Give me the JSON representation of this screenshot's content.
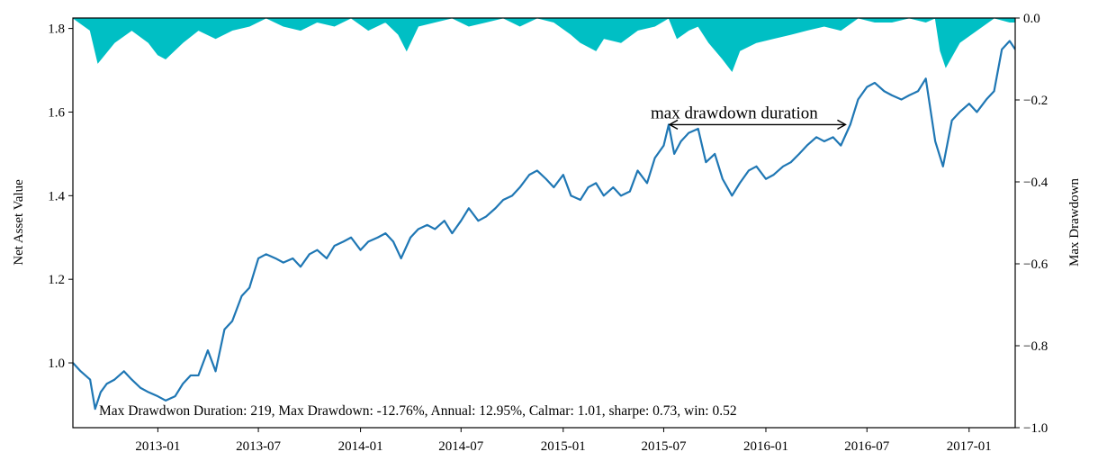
{
  "chart_data": {
    "type": "line",
    "title": "",
    "xlabel": "",
    "ylabel": "Net Asset Value",
    "y2label": "Max Drawdown",
    "xlim": [
      "2012-08-01",
      "2017-03-25"
    ],
    "ylim": [
      0.845,
      1.825
    ],
    "y2lim": [
      -1.0,
      0.0
    ],
    "x_ticks": [
      "2013-01",
      "2013-07",
      "2014-01",
      "2014-07",
      "2015-01",
      "2015-07",
      "2016-01",
      "2016-07",
      "2017-01"
    ],
    "y_ticks": [
      "1.0",
      "1.2",
      "1.4",
      "1.6",
      "1.8"
    ],
    "y2_ticks": [
      "0.0",
      "−0.2",
      "−0.4",
      "−0.6",
      "−0.8",
      "−1.0"
    ],
    "legend": "none",
    "grid": false,
    "colors": {
      "nav": "#1f77b4",
      "drawdown": "#00bfc4"
    },
    "series": [
      {
        "axis": "left",
        "type": "line",
        "x": [
          "2012-08-01",
          "2012-08-15",
          "2012-09-01",
          "2012-09-10",
          "2012-09-20",
          "2012-10-01",
          "2012-10-15",
          "2012-11-01",
          "2012-11-15",
          "2012-12-01",
          "2012-12-15",
          "2013-01-01",
          "2013-01-15",
          "2013-02-01",
          "2013-02-15",
          "2013-03-01",
          "2013-03-15",
          "2013-04-01",
          "2013-04-15",
          "2013-05-01",
          "2013-05-15",
          "2013-06-01",
          "2013-06-15",
          "2013-07-01",
          "2013-07-15",
          "2013-08-01",
          "2013-08-15",
          "2013-09-01",
          "2013-09-15",
          "2013-10-01",
          "2013-10-15",
          "2013-11-01",
          "2013-11-15",
          "2013-12-01",
          "2013-12-15",
          "2014-01-01",
          "2014-01-15",
          "2014-02-01",
          "2014-02-15",
          "2014-03-01",
          "2014-03-15",
          "2014-04-01",
          "2014-04-15",
          "2014-05-01",
          "2014-05-15",
          "2014-06-01",
          "2014-06-15",
          "2014-07-01",
          "2014-07-15",
          "2014-08-01",
          "2014-08-15",
          "2014-09-01",
          "2014-09-15",
          "2014-10-01",
          "2014-10-15",
          "2014-11-01",
          "2014-11-15",
          "2014-12-01",
          "2014-12-15",
          "2015-01-01",
          "2015-01-15",
          "2015-02-01",
          "2015-02-15",
          "2015-03-01",
          "2015-03-15",
          "2015-04-01",
          "2015-04-15",
          "2015-05-01",
          "2015-05-15",
          "2015-06-01",
          "2015-06-15",
          "2015-07-01",
          "2015-07-10",
          "2015-07-20",
          "2015-08-01",
          "2015-08-15",
          "2015-09-01",
          "2015-09-15",
          "2015-10-01",
          "2015-10-15",
          "2015-11-01",
          "2015-11-15",
          "2015-12-01",
          "2015-12-15",
          "2016-01-01",
          "2016-01-15",
          "2016-02-01",
          "2016-02-15",
          "2016-03-01",
          "2016-03-15",
          "2016-04-01",
          "2016-04-15",
          "2016-05-01",
          "2016-05-15",
          "2016-06-01",
          "2016-06-15",
          "2016-07-01",
          "2016-07-15",
          "2016-08-01",
          "2016-08-15",
          "2016-09-01",
          "2016-09-15",
          "2016-10-01",
          "2016-10-15",
          "2016-11-01",
          "2016-11-15",
          "2016-12-01",
          "2016-12-15",
          "2017-01-01",
          "2017-01-15",
          "2017-02-01",
          "2017-02-15",
          "2017-03-01",
          "2017-03-15",
          "2017-03-25"
        ],
        "y": [
          1.0,
          0.98,
          0.96,
          0.89,
          0.93,
          0.95,
          0.96,
          0.98,
          0.96,
          0.94,
          0.93,
          0.92,
          0.91,
          0.92,
          0.95,
          0.97,
          0.97,
          1.03,
          0.98,
          1.08,
          1.1,
          1.16,
          1.18,
          1.25,
          1.26,
          1.25,
          1.24,
          1.25,
          1.23,
          1.26,
          1.27,
          1.25,
          1.28,
          1.29,
          1.3,
          1.27,
          1.29,
          1.3,
          1.31,
          1.29,
          1.25,
          1.3,
          1.32,
          1.33,
          1.32,
          1.34,
          1.31,
          1.34,
          1.37,
          1.34,
          1.35,
          1.37,
          1.39,
          1.4,
          1.42,
          1.45,
          1.46,
          1.44,
          1.42,
          1.45,
          1.4,
          1.39,
          1.42,
          1.43,
          1.4,
          1.42,
          1.4,
          1.41,
          1.46,
          1.43,
          1.49,
          1.52,
          1.57,
          1.5,
          1.53,
          1.55,
          1.56,
          1.48,
          1.5,
          1.44,
          1.4,
          1.43,
          1.46,
          1.47,
          1.44,
          1.45,
          1.47,
          1.48,
          1.5,
          1.52,
          1.54,
          1.53,
          1.54,
          1.52,
          1.57,
          1.63,
          1.66,
          1.67,
          1.65,
          1.64,
          1.63,
          1.64,
          1.65,
          1.68,
          1.53,
          1.47,
          1.58,
          1.6,
          1.62,
          1.6,
          1.63,
          1.65,
          1.75,
          1.77,
          1.75
        ]
      },
      {
        "axis": "right",
        "type": "area",
        "x": [
          "2012-08-01",
          "2012-09-01",
          "2012-09-15",
          "2012-10-15",
          "2012-11-15",
          "2012-12-15",
          "2013-01-01",
          "2013-01-15",
          "2013-02-15",
          "2013-03-15",
          "2013-04-15",
          "2013-05-15",
          "2013-06-15",
          "2013-07-15",
          "2013-08-15",
          "2013-09-15",
          "2013-10-15",
          "2013-11-15",
          "2013-12-15",
          "2014-01-15",
          "2014-02-15",
          "2014-03-10",
          "2014-03-25",
          "2014-04-15",
          "2014-05-15",
          "2014-06-15",
          "2014-07-15",
          "2014-08-15",
          "2014-09-15",
          "2014-10-15",
          "2014-11-15",
          "2014-12-15",
          "2015-01-15",
          "2015-02-01",
          "2015-03-01",
          "2015-03-15",
          "2015-04-15",
          "2015-05-15",
          "2015-06-15",
          "2015-07-10",
          "2015-07-25",
          "2015-08-15",
          "2015-09-01",
          "2015-09-20",
          "2015-10-15",
          "2015-11-01",
          "2015-11-15",
          "2015-12-15",
          "2016-01-15",
          "2016-02-15",
          "2016-03-15",
          "2016-04-15",
          "2016-05-15",
          "2016-06-15",
          "2016-07-15",
          "2016-08-15",
          "2016-09-15",
          "2016-10-15",
          "2016-11-01",
          "2016-11-10",
          "2016-11-20",
          "2016-12-15",
          "2017-01-15",
          "2017-02-15",
          "2017-03-15",
          "2017-03-25"
        ],
        "y": [
          0.0,
          -0.03,
          -0.11,
          -0.06,
          -0.03,
          -0.06,
          -0.09,
          -0.1,
          -0.06,
          -0.03,
          -0.05,
          -0.03,
          -0.02,
          0.0,
          -0.02,
          -0.03,
          -0.01,
          -0.02,
          0.0,
          -0.03,
          -0.01,
          -0.04,
          -0.08,
          -0.02,
          -0.01,
          0.0,
          -0.02,
          -0.01,
          0.0,
          -0.02,
          0.0,
          -0.01,
          -0.04,
          -0.06,
          -0.08,
          -0.05,
          -0.06,
          -0.03,
          -0.02,
          0.0,
          -0.05,
          -0.03,
          -0.02,
          -0.06,
          -0.1,
          -0.13,
          -0.08,
          -0.06,
          -0.05,
          -0.04,
          -0.03,
          -0.02,
          -0.03,
          0.0,
          -0.01,
          -0.01,
          0.0,
          -0.01,
          0.0,
          -0.08,
          -0.12,
          -0.06,
          -0.03,
          0.0,
          -0.01,
          -0.01
        ]
      }
    ],
    "annotations": [
      {
        "text": "max drawdown duration",
        "type": "double-arrow",
        "x_start": "2015-07-10",
        "x_end": "2016-05-25",
        "y": 1.57
      }
    ],
    "stats_text": "Max Drawdwon Duration: 219, Max Drawdown: -12.76%, Annual: 12.95%, Calmar: 1.01, sharpe: 0.73, win: 0.52"
  }
}
